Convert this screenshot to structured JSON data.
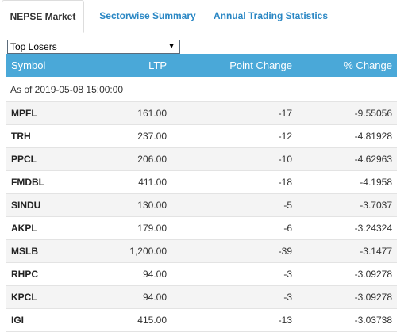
{
  "tabs": [
    {
      "label": "NEPSE Market"
    },
    {
      "label": "Sectorwise Summary"
    },
    {
      "label": "Annual Trading Statistics"
    }
  ],
  "filter": {
    "selected": "Top Losers"
  },
  "table": {
    "headers": [
      "Symbol",
      "LTP",
      "Point Change",
      "% Change"
    ],
    "as_of": "As of 2019-05-08 15:00:00",
    "rows": [
      [
        "MPFL",
        "161.00",
        "-17",
        "-9.55056"
      ],
      [
        "TRH",
        "237.00",
        "-12",
        "-4.81928"
      ],
      [
        "PPCL",
        "206.00",
        "-10",
        "-4.62963"
      ],
      [
        "FMDBL",
        "411.00",
        "-18",
        "-4.1958"
      ],
      [
        "SINDU",
        "130.00",
        "-5",
        "-3.7037"
      ],
      [
        "AKPL",
        "179.00",
        "-6",
        "-3.24324"
      ],
      [
        "MSLB",
        "1,200.00",
        "-39",
        "-3.1477"
      ],
      [
        "RHPC",
        "94.00",
        "-3",
        "-3.09278"
      ],
      [
        "KPCL",
        "94.00",
        "-3",
        "-3.09278"
      ],
      [
        "IGI",
        "415.00",
        "-13",
        "-3.03738"
      ]
    ]
  }
}
